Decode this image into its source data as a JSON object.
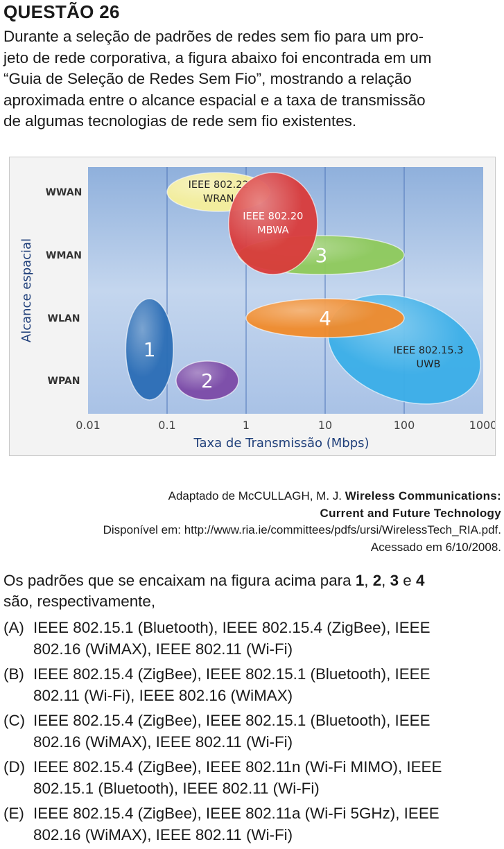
{
  "question": {
    "title": "QUESTÃO 26",
    "intro_lines": [
      "Durante a seleção de padrões de redes sem fio para um pro-",
      "jeto de rede corporativa, a figura abaixo foi encontrada em um",
      "“Guia de Seleção de Redes Sem Fio”, mostrando a relação",
      "aproximada entre o alcance espacial e a taxa de transmissão",
      "de algumas tecnologias de rede sem fio existentes."
    ],
    "source": {
      "prefix": "Adaptado de McCULLAGH, M. J. ",
      "title_part1": "Wireless Communications:",
      "title_part2": "Current and Future Technology",
      "available": "Disponível em: http://www.ria.ie/committees/pdfs/ursi/WirelessTech_RIA.pdf.",
      "accessed": "Acessado em 6/10/2008."
    },
    "prompt": {
      "text_before": "Os padrões que se encaixam na figura acima para ",
      "n1": "1",
      "sep1": ", ",
      "n2": "2",
      "sep2": ", ",
      "n3": "3",
      "and": " e ",
      "n4": "4",
      "line2": "são, respectivamente,"
    },
    "options": [
      {
        "letter": "(A)",
        "lines": [
          "IEEE 802.15.1 (Bluetooth), IEEE 802.15.4 (ZigBee), IEEE",
          "802.16 (WiMAX), IEEE 802.11 (Wi-Fi)"
        ]
      },
      {
        "letter": "(B)",
        "lines": [
          "IEEE 802.15.4 (ZigBee), IEEE 802.15.1 (Bluetooth), IEEE",
          "802.11 (Wi-Fi), IEEE 802.16 (WiMAX)"
        ]
      },
      {
        "letter": "(C)",
        "lines": [
          "IEEE 802.15.4 (ZigBee), IEEE 802.15.1 (Bluetooth), IEEE",
          "802.16 (WiMAX), IEEE 802.11 (Wi-Fi)"
        ]
      },
      {
        "letter": "(D)",
        "lines": [
          "IEEE 802.15.4 (ZigBee), IEEE 802.11n (Wi-Fi MIMO), IEEE",
          "802.15.1 (Bluetooth), IEEE 802.11 (Wi-Fi)"
        ]
      },
      {
        "letter": "(E)",
        "lines": [
          "IEEE 802.15.4 (ZigBee), IEEE 802.11a (Wi-Fi 5GHz), IEEE",
          "802.16 (WiMAX), IEEE 802.11 (Wi-Fi)"
        ]
      }
    ]
  },
  "chart_data": {
    "type": "scatter",
    "title": "",
    "xlabel": "Taxa de Transmissão (Mbps)",
    "ylabel": "Alcance espacial",
    "x_scale": "log",
    "x_ticks": [
      0.01,
      0.1,
      1,
      10,
      100,
      1000
    ],
    "x_tick_labels": [
      "0.01",
      "0.1",
      "1",
      "10",
      "100",
      "1000"
    ],
    "xlim": [
      0.01,
      1000
    ],
    "y_categories": [
      "WPAN",
      "WLAN",
      "WMAN",
      "WWAN"
    ],
    "grid": "vertical",
    "legend": "none",
    "regions": [
      {
        "label": "1",
        "x_min": 0.03,
        "x_max": 0.12,
        "y_min": "WPAN",
        "y_max": "WLAN",
        "color": "#2a6db5"
      },
      {
        "label": "2",
        "x_min": 0.13,
        "x_max": 0.8,
        "y_min": "WPAN",
        "y_max": "WPAN",
        "color": "#7b4aa6"
      },
      {
        "label": "3",
        "x_min": 0.8,
        "x_max": 100,
        "y_min": "WMAN",
        "y_max": "WMAN",
        "color": "#8ec95b"
      },
      {
        "label": "4",
        "x_min": 1,
        "x_max": 100,
        "y_min": "WLAN",
        "y_max": "WLAN",
        "color": "#f08a2a"
      },
      {
        "label_lines": [
          "IEEE 802.15.3",
          "UWB"
        ],
        "x_min": 10,
        "x_max": 1000,
        "y_min": "WPAN",
        "y_max": "WLAN",
        "color": "#3aaee8"
      },
      {
        "label_lines": [
          "IEEE 802.22",
          "WRAN"
        ],
        "x_min": 0.1,
        "x_max": 2,
        "y_min": "WWAN",
        "y_max": "WWAN",
        "color": "#f7ef9a"
      },
      {
        "label_lines": [
          "IEEE 802.20",
          "MBWA"
        ],
        "x_min": 0.6,
        "x_max": 8,
        "y_min": "WMAN",
        "y_max": "WWAN",
        "color": "#d93a3a"
      }
    ]
  }
}
